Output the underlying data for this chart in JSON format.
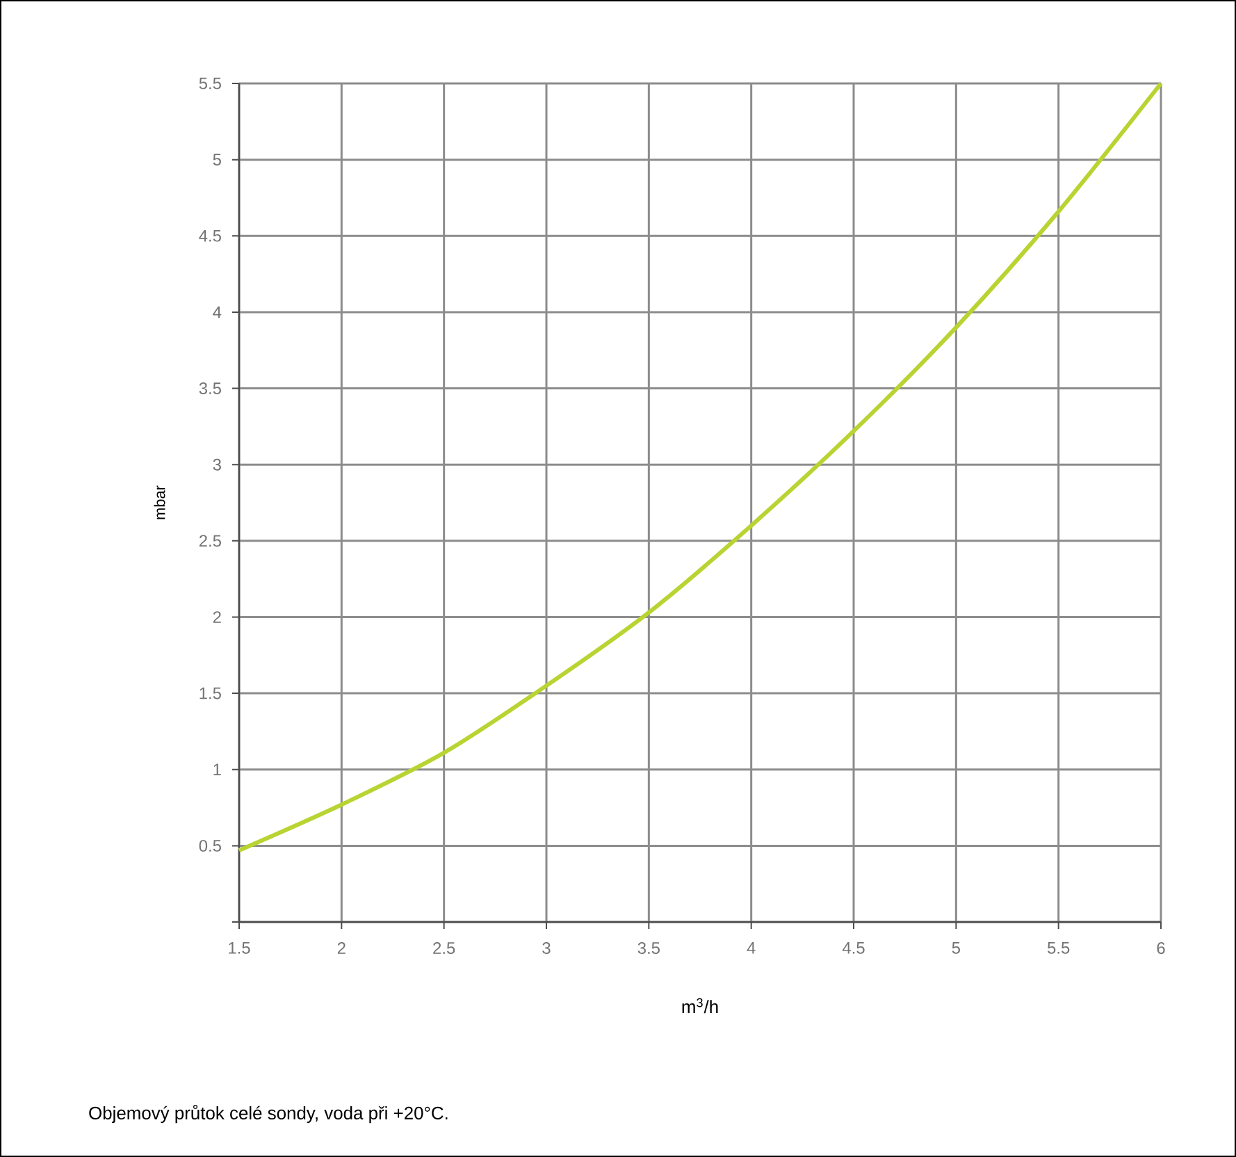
{
  "chart_data": {
    "type": "line",
    "xlabel": "m$^{3}$/h",
    "ylabel": "mbar",
    "annotations": [
      "Objemový průtok celé sondy, voda při +20°C."
    ],
    "x": [
      1.5,
      2,
      2.5,
      3,
      3.5,
      4,
      4.5,
      5,
      5.5,
      6
    ],
    "series": [
      {
        "color": "#b8d432",
        "values": [
          0.47,
          0.77,
          1.11,
          1.55,
          2.03,
          2.6,
          3.22,
          3.9,
          4.66,
          5.5
        ]
      }
    ],
    "xlim": [
      1.5,
      6
    ],
    "ylim": [
      0,
      5.5
    ],
    "xticks": [
      1.5,
      2,
      2.5,
      3,
      3.5,
      4,
      4.5,
      5,
      5.5,
      6
    ],
    "yticks": [
      {
        "value": 0,
        "label": null
      },
      0.5,
      1,
      1.5,
      2,
      2.5,
      3,
      3.5,
      4,
      4.5,
      5,
      5.5
    ],
    "grid": true,
    "marker": "none",
    "line_style": "solid"
  }
}
